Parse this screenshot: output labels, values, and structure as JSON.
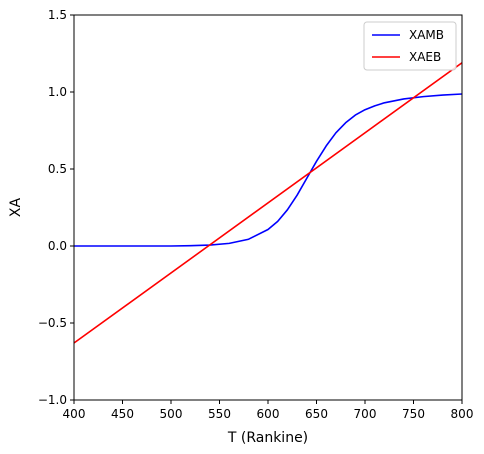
{
  "chart_data": {
    "type": "line",
    "title": "",
    "xlabel": "T (Rankine)",
    "ylabel": "XA",
    "xlim": [
      400,
      800
    ],
    "ylim": [
      -1.0,
      1.5
    ],
    "x_ticks": [
      400,
      450,
      500,
      550,
      600,
      650,
      700,
      750,
      800
    ],
    "x_tick_labels": [
      "400",
      "450",
      "500",
      "550",
      "600",
      "650",
      "700",
      "750",
      "800"
    ],
    "y_ticks": [
      -1.0,
      -0.5,
      0.0,
      0.5,
      1.0,
      1.5
    ],
    "y_tick_labels": [
      "−1.0",
      "−0.5",
      "0.0",
      "0.5",
      "1.0",
      "1.5"
    ],
    "grid": false,
    "legend_position": "top-right",
    "series": [
      {
        "name": "XAMB",
        "color": "#0000ff",
        "x": [
          400,
          450,
          500,
          520,
          540,
          560,
          580,
          600,
          610,
          620,
          630,
          640,
          650,
          660,
          670,
          680,
          690,
          700,
          710,
          720,
          740,
          760,
          780,
          800
        ],
        "y": [
          0.0,
          0.0,
          0.0,
          0.002,
          0.006,
          0.017,
          0.044,
          0.107,
          0.16,
          0.235,
          0.33,
          0.44,
          0.55,
          0.65,
          0.735,
          0.8,
          0.85,
          0.885,
          0.91,
          0.93,
          0.955,
          0.97,
          0.98,
          0.987
        ]
      },
      {
        "name": "XAEB",
        "color": "#ff0000",
        "x": [
          400,
          800
        ],
        "y": [
          -0.63,
          1.19
        ]
      }
    ]
  }
}
